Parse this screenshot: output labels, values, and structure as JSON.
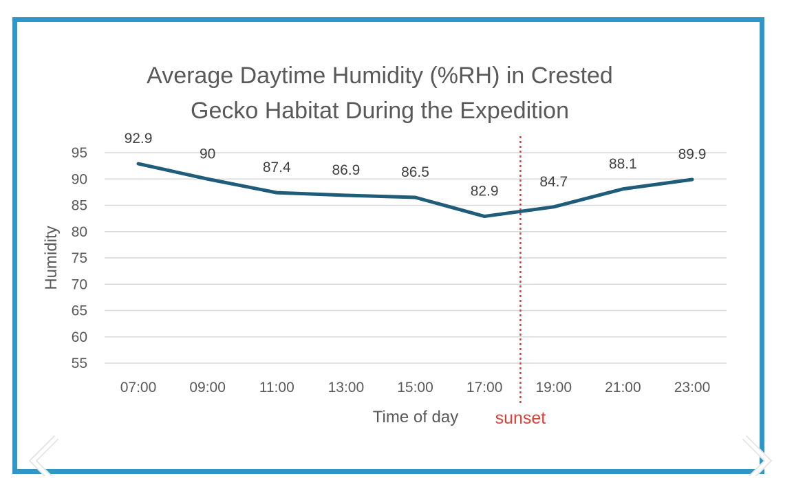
{
  "chart_data": {
    "type": "line",
    "title": [
      "Average Daytime Humidity (%RH) in Crested",
      "Gecko Habitat During the Expedition"
    ],
    "xlabel": "Time of day",
    "ylabel": "Humidity",
    "categories": [
      "07:00",
      "09:00",
      "11:00",
      "13:00",
      "15:00",
      "17:00",
      "19:00",
      "21:00",
      "23:00"
    ],
    "values": [
      92.9,
      90,
      87.4,
      86.9,
      86.5,
      82.9,
      84.7,
      88.1,
      89.9
    ],
    "value_labels": [
      "92.9",
      "90",
      "87.4",
      "86.9",
      "86.5",
      "82.9",
      "84.7",
      "88.1",
      "89.9"
    ],
    "y_ticks": [
      55,
      60,
      65,
      70,
      75,
      80,
      85,
      90,
      95
    ],
    "ylim": [
      55,
      95
    ],
    "grid": true,
    "line_color": "#1f5c7a",
    "annotation": {
      "label": "sunset",
      "between": [
        "17:00",
        "19:00"
      ],
      "color": "#d9423b",
      "style": "dotted vertical line"
    }
  },
  "frame": {
    "border_color": "#2f97c8"
  },
  "navigation": {
    "prev_icon": "chevron-left-icon",
    "next_icon": "chevron-right-icon"
  }
}
